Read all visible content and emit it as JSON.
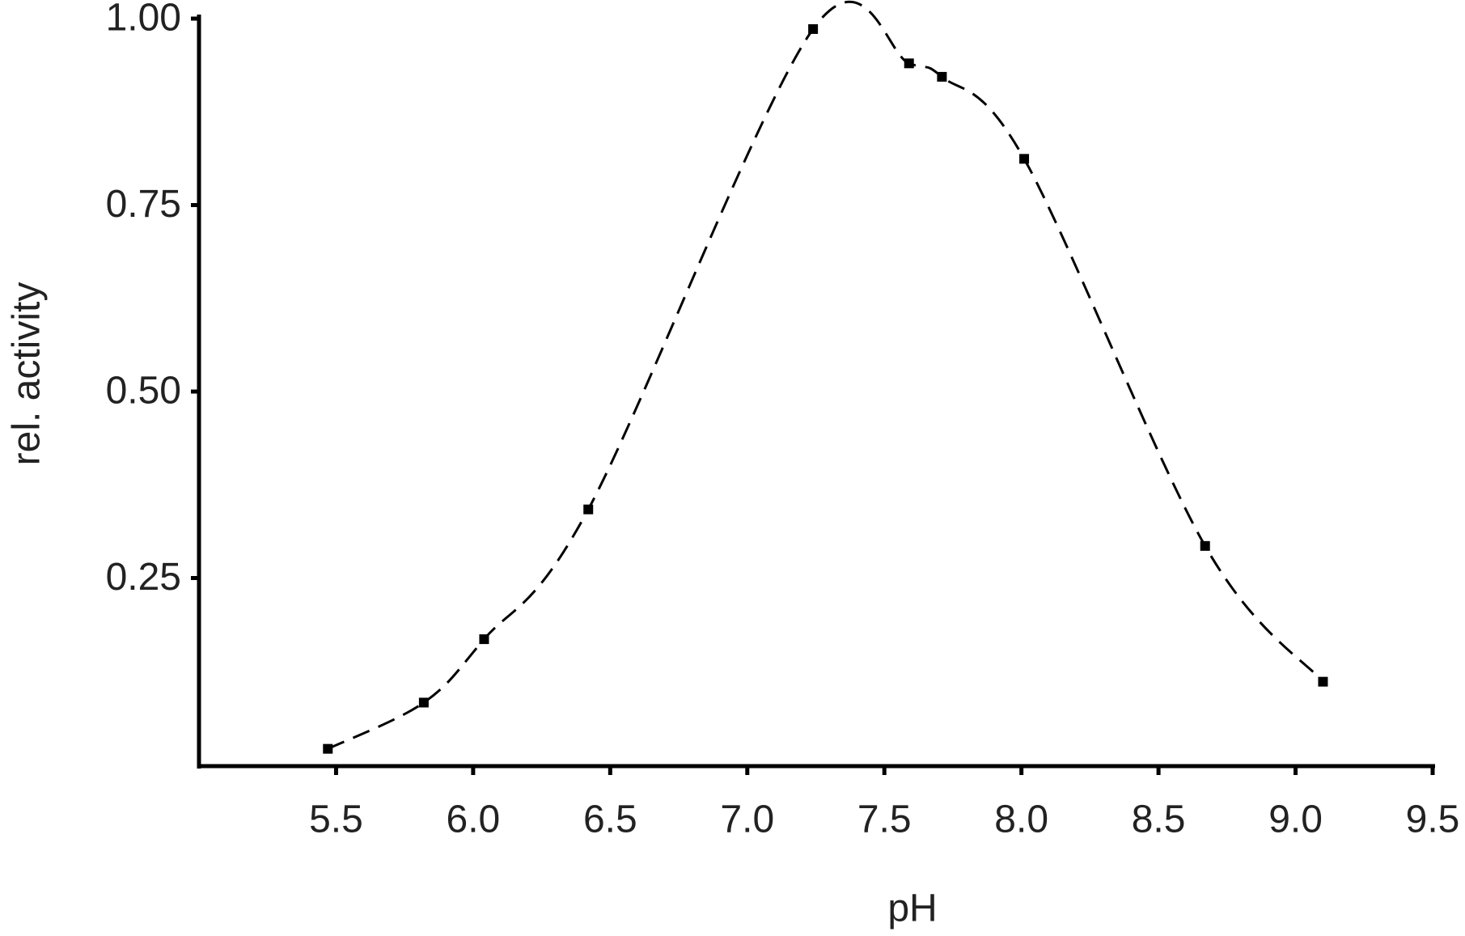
{
  "chart_data": {
    "type": "line",
    "x_label": "pH",
    "y_label": "rel. activity",
    "x": [
      5.47,
      5.82,
      6.04,
      6.42,
      7.24,
      7.59,
      7.71,
      8.01,
      8.67,
      9.1
    ],
    "series": [
      {
        "color": "#000000",
        "dashed": true,
        "values": [
          0.021,
          0.083,
          0.168,
          0.342,
          0.986,
          0.94,
          0.922,
          0.812,
          0.293,
          0.111
        ]
      }
    ],
    "xlim": [
      5.0,
      9.5
    ],
    "xticks": [
      5.5,
      {
        "value": 6,
        "label": "6.0"
      },
      6.5,
      {
        "value": 7,
        "label": "7.0"
      },
      7.5,
      {
        "value": 8,
        "label": "8.0"
      },
      8.5,
      {
        "value": 9,
        "label": "9.0"
      },
      9.5
    ],
    "ylim": [
      0,
      1
    ],
    "yticks": [
      0.25,
      {
        "value": 0.5,
        "label": "0.50"
      },
      0.75,
      {
        "value": 1,
        "label": "1.00"
      }
    ]
  }
}
